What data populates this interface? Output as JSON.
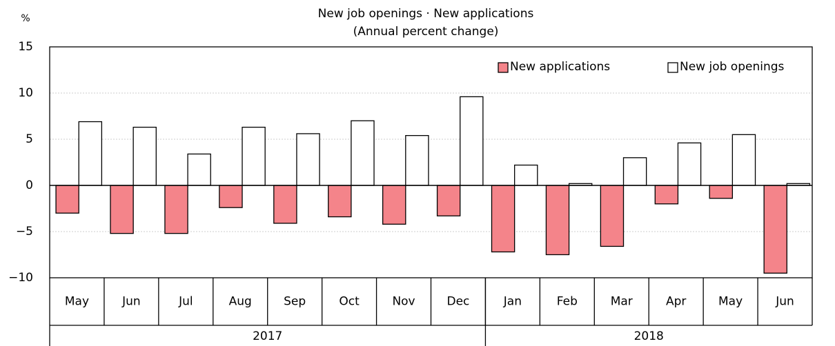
{
  "chart_data": {
    "type": "bar",
    "title": "New job openings · New applications",
    "subtitle": "(Annual percent change)",
    "y_unit": "%",
    "category_groups": [
      {
        "label": "2017",
        "categories": [
          "May",
          "Jun",
          "Jul",
          "Aug",
          "Sep",
          "Oct",
          "Nov",
          "Dec"
        ]
      },
      {
        "label": "2018",
        "categories": [
          "Jan",
          "Feb",
          "Mar",
          "Apr",
          "May",
          "Jun"
        ]
      }
    ],
    "series": [
      {
        "name": "New applications",
        "color": "#f4848a",
        "values": [
          -3.0,
          -5.2,
          -5.2,
          -2.4,
          -4.1,
          -3.4,
          -4.2,
          -3.3,
          -7.2,
          -7.5,
          -6.6,
          -2.0,
          -1.4,
          -9.5
        ]
      },
      {
        "name": "New job openings",
        "color": "#ffffff",
        "values": [
          6.9,
          6.3,
          3.4,
          6.3,
          5.6,
          7.0,
          5.4,
          9.6,
          2.2,
          0.2,
          3.0,
          4.6,
          5.5,
          0.2
        ]
      }
    ],
    "ylim": [
      -10,
      15
    ],
    "yticks": [
      {
        "value": -10,
        "label": "−10"
      },
      {
        "value": -5,
        "label": "−5"
      },
      0,
      5,
      10,
      15
    ],
    "grid": true,
    "legend": "top-right"
  }
}
